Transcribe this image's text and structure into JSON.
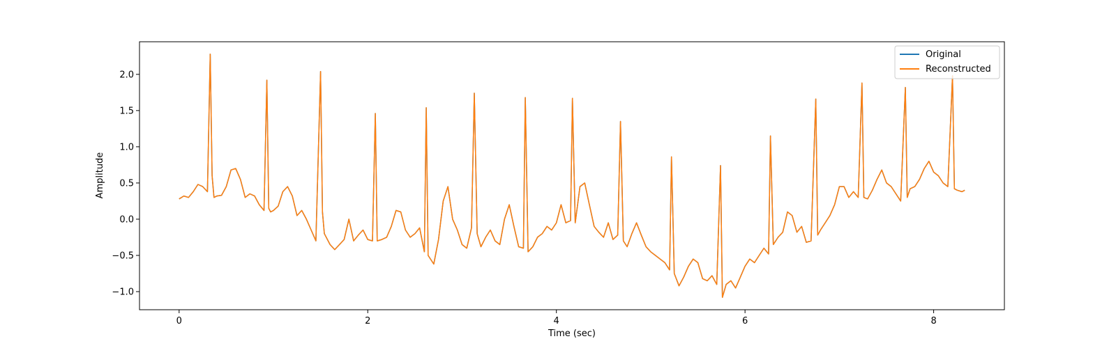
{
  "chart_data": {
    "type": "line",
    "title": "",
    "xlabel": "Time (sec)",
    "ylabel": "Amplitude",
    "xlim": [
      -0.42,
      8.75
    ],
    "ylim": [
      -1.25,
      2.45
    ],
    "xticks": [
      0,
      2,
      4,
      6,
      8
    ],
    "xtick_labels": [
      "0",
      "2",
      "4",
      "6",
      "8"
    ],
    "yticks": [
      -1.0,
      -0.5,
      0.0,
      0.5,
      1.0,
      1.5,
      2.0
    ],
    "ytick_labels": [
      "−1.0",
      "−0.5",
      "0.0",
      "0.5",
      "1.0",
      "1.5",
      "2.0"
    ],
    "grid": false,
    "legend_position": "top-right",
    "series": [
      {
        "name": "Original",
        "color": "#1f77b4",
        "x": [
          0.0,
          0.05,
          0.1,
          0.15,
          0.2,
          0.25,
          0.3,
          0.33,
          0.35,
          0.37,
          0.4,
          0.45,
          0.5,
          0.55,
          0.6,
          0.65,
          0.7,
          0.75,
          0.8,
          0.85,
          0.9,
          0.93,
          0.95,
          0.97,
          1.0,
          1.05,
          1.1,
          1.15,
          1.2,
          1.25,
          1.3,
          1.35,
          1.4,
          1.45,
          1.5,
          1.52,
          1.54,
          1.6,
          1.65,
          1.7,
          1.75,
          1.8,
          1.85,
          1.9,
          1.95,
          2.0,
          2.05,
          2.08,
          2.1,
          2.15,
          2.2,
          2.25,
          2.3,
          2.35,
          2.4,
          2.45,
          2.5,
          2.55,
          2.6,
          2.62,
          2.64,
          2.7,
          2.75,
          2.8,
          2.85,
          2.9,
          2.95,
          3.0,
          3.05,
          3.1,
          3.13,
          3.16,
          3.2,
          3.25,
          3.3,
          3.35,
          3.4,
          3.45,
          3.5,
          3.55,
          3.6,
          3.65,
          3.67,
          3.7,
          3.75,
          3.8,
          3.85,
          3.9,
          3.95,
          4.0,
          4.05,
          4.1,
          4.15,
          4.17,
          4.2,
          4.25,
          4.3,
          4.35,
          4.4,
          4.45,
          4.5,
          4.55,
          4.6,
          4.65,
          4.68,
          4.71,
          4.75,
          4.8,
          4.85,
          4.9,
          4.95,
          5.0,
          5.05,
          5.1,
          5.15,
          5.2,
          5.22,
          5.25,
          5.3,
          5.35,
          5.4,
          5.45,
          5.5,
          5.55,
          5.6,
          5.65,
          5.7,
          5.74,
          5.76,
          5.8,
          5.85,
          5.9,
          5.95,
          6.0,
          6.05,
          6.1,
          6.15,
          6.2,
          6.25,
          6.27,
          6.3,
          6.35,
          6.4,
          6.45,
          6.5,
          6.55,
          6.6,
          6.65,
          6.7,
          6.75,
          6.77,
          6.8,
          6.85,
          6.9,
          6.95,
          7.0,
          7.05,
          7.1,
          7.15,
          7.2,
          7.24,
          7.26,
          7.3,
          7.35,
          7.4,
          7.45,
          7.5,
          7.55,
          7.6,
          7.65,
          7.7,
          7.72,
          7.75,
          7.8,
          7.85,
          7.9,
          7.95,
          8.0,
          8.05,
          8.1,
          8.15,
          8.2,
          8.22,
          8.25,
          8.3,
          8.33
        ],
        "y": [
          0.28,
          0.32,
          0.3,
          0.38,
          0.48,
          0.45,
          0.38,
          2.28,
          0.6,
          0.3,
          0.32,
          0.33,
          0.45,
          0.68,
          0.7,
          0.55,
          0.3,
          0.35,
          0.32,
          0.2,
          0.12,
          1.92,
          0.15,
          0.1,
          0.12,
          0.18,
          0.38,
          0.45,
          0.32,
          0.05,
          0.12,
          0.0,
          -0.15,
          -0.3,
          2.04,
          0.1,
          -0.2,
          -0.35,
          -0.42,
          -0.35,
          -0.28,
          0.0,
          -0.3,
          -0.22,
          -0.15,
          -0.28,
          -0.3,
          1.46,
          -0.3,
          -0.28,
          -0.25,
          -0.1,
          0.12,
          0.1,
          -0.15,
          -0.25,
          -0.2,
          -0.12,
          -0.45,
          1.54,
          -0.5,
          -0.62,
          -0.28,
          0.25,
          0.45,
          0.0,
          -0.15,
          -0.35,
          -0.4,
          -0.12,
          1.74,
          -0.2,
          -0.38,
          -0.25,
          -0.15,
          -0.3,
          -0.35,
          0.0,
          0.2,
          -0.1,
          -0.38,
          -0.4,
          1.68,
          -0.45,
          -0.38,
          -0.25,
          -0.2,
          -0.1,
          -0.15,
          -0.05,
          0.2,
          -0.05,
          -0.02,
          1.67,
          -0.05,
          0.45,
          0.5,
          0.2,
          -0.1,
          -0.18,
          -0.25,
          -0.05,
          -0.28,
          -0.22,
          1.35,
          -0.3,
          -0.38,
          -0.2,
          -0.05,
          -0.22,
          -0.38,
          -0.45,
          -0.5,
          -0.55,
          -0.6,
          -0.7,
          0.86,
          -0.75,
          -0.92,
          -0.8,
          -0.65,
          -0.55,
          -0.6,
          -0.82,
          -0.85,
          -0.78,
          -0.9,
          0.74,
          -1.08,
          -0.9,
          -0.85,
          -0.95,
          -0.8,
          -0.65,
          -0.55,
          -0.6,
          -0.5,
          -0.4,
          -0.48,
          1.15,
          -0.35,
          -0.25,
          -0.18,
          0.1,
          0.05,
          -0.18,
          -0.1,
          -0.32,
          -0.3,
          1.66,
          -0.22,
          -0.15,
          -0.05,
          0.05,
          0.2,
          0.45,
          0.45,
          0.3,
          0.38,
          0.3,
          1.88,
          0.3,
          0.28,
          0.4,
          0.55,
          0.68,
          0.5,
          0.45,
          0.35,
          0.25,
          1.82,
          0.3,
          0.42,
          0.45,
          0.55,
          0.7,
          0.8,
          0.65,
          0.6,
          0.5,
          0.45,
          1.98,
          0.42,
          0.4,
          0.38,
          0.4
        ]
      },
      {
        "name": "Reconstructed",
        "color": "#ff7f0e",
        "same_as": "Original"
      }
    ]
  },
  "legend": {
    "items": [
      {
        "label": "Original",
        "color": "#1f77b4"
      },
      {
        "label": "Reconstructed",
        "color": "#ff7f0e"
      }
    ]
  }
}
